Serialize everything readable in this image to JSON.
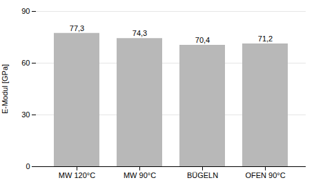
{
  "chart_data": {
    "type": "bar",
    "categories": [
      "MW 120°C",
      "MW 90°C",
      "BÜGELN",
      "OFEN 90°C"
    ],
    "values": [
      77.3,
      74.3,
      70.4,
      71.2
    ],
    "value_labels": [
      "77,3",
      "74,3",
      "70,4",
      "71,2"
    ],
    "data_labels": true,
    "color": "#b8b8b8",
    "ylabel": "E-Modul [GPa]",
    "ylim": [
      0,
      90
    ],
    "yticks": [
      0,
      30,
      60,
      90
    ],
    "grid": true
  }
}
